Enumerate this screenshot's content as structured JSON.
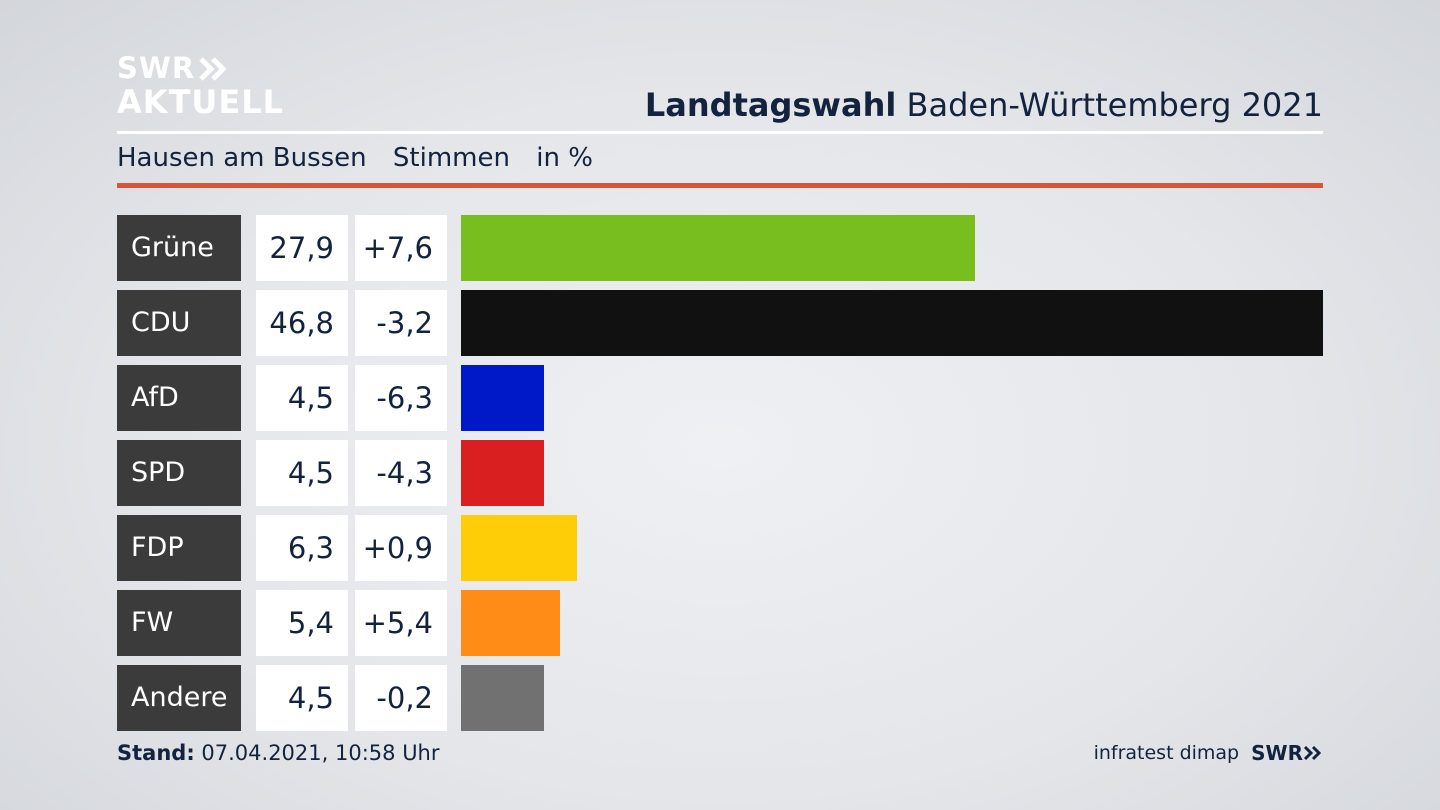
{
  "logo": {
    "line1": "SWR",
    "line2": "AKTUELL"
  },
  "header": {
    "title_bold": "Landtagswahl",
    "title_rest": "Baden-Württemberg 2021"
  },
  "subtitle": {
    "place": "Hausen am Bussen",
    "measure": "Stimmen",
    "unit": "in %"
  },
  "footer": {
    "stand_label": "Stand:",
    "stand_value": "07.04.2021, 10:58 Uhr",
    "source": "infratest dimap",
    "brand": "SWR"
  },
  "chart_data": {
    "type": "bar",
    "orientation": "horizontal",
    "categories": [
      "Grüne",
      "CDU",
      "AfD",
      "SPD",
      "FDP",
      "FW",
      "Andere"
    ],
    "values": [
      27.9,
      46.8,
      4.5,
      4.5,
      6.3,
      5.4,
      4.5
    ],
    "value_labels": [
      "27,9",
      "46,8",
      "4,5",
      "4,5",
      "6,3",
      "5,4",
      "4,5"
    ],
    "changes": [
      "+7,6",
      "-3,2",
      "-6,3",
      "-4,3",
      "+0,9",
      "+5,4",
      "-0,2"
    ],
    "colors": [
      "#78be1e",
      "#111111",
      "#0019c8",
      "#d91f1f",
      "#ffcc08",
      "#ff8c16",
      "#717171"
    ],
    "unit": "in %",
    "xlim": [
      0,
      46.8
    ]
  }
}
